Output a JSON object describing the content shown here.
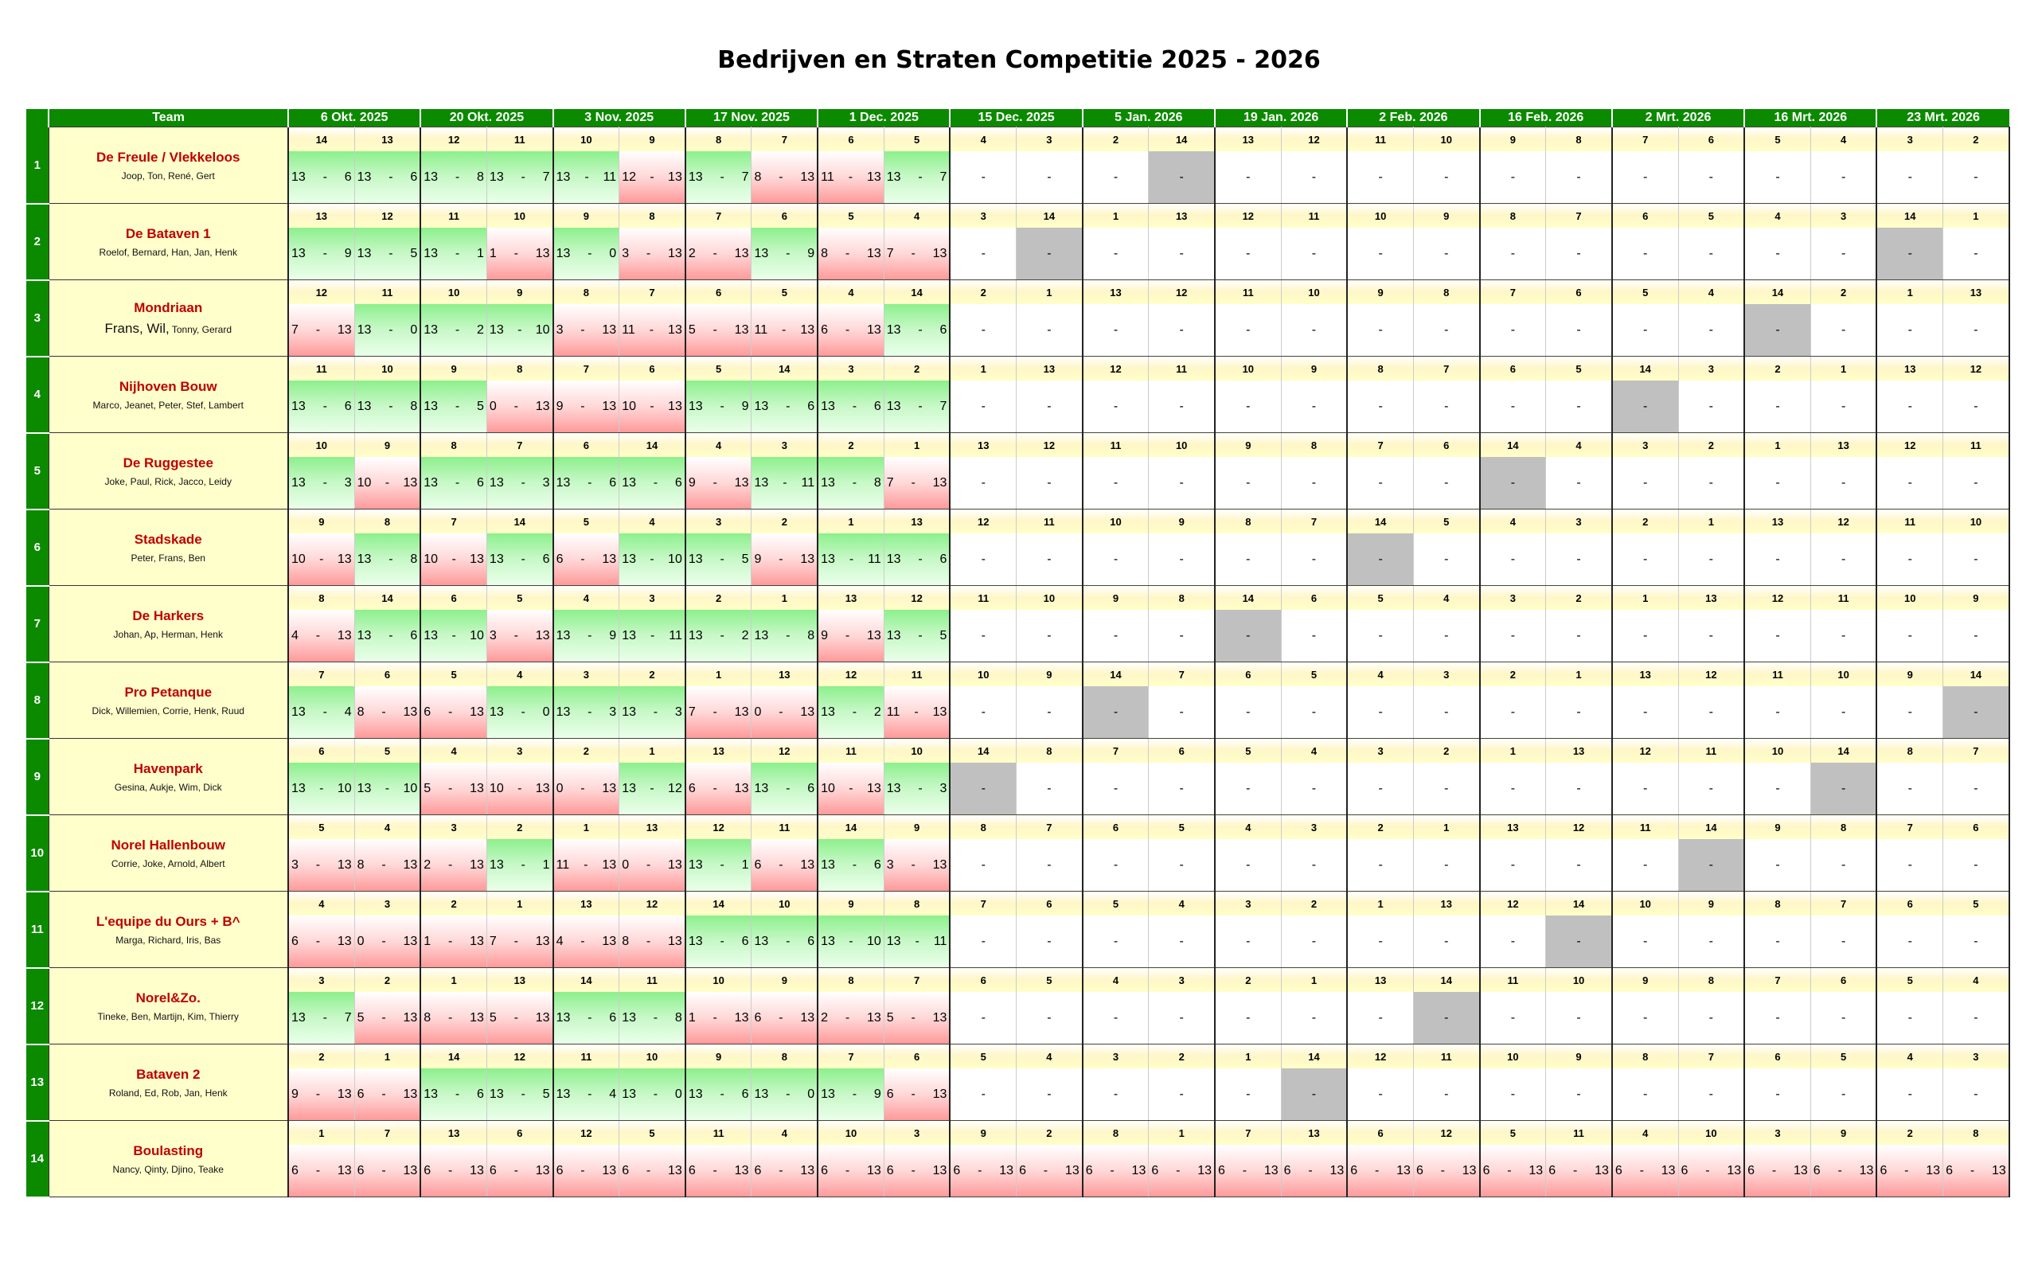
{
  "title": "Bedrijven en Straten Competitie 2025 - 2026",
  "header": {
    "team_label": "Team",
    "dates": [
      "6 Okt. 2025",
      "20 Okt. 2025",
      "3 Nov. 2025",
      "17 Nov. 2025",
      "1 Dec. 2025",
      "15 Dec. 2025",
      "5 Jan. 2026",
      "19 Jan. 2026",
      "2 Feb. 2026",
      "16 Feb. 2026",
      "2 Mrt. 2026",
      "16 Mrt. 2026",
      "23 Mrt. 2026"
    ]
  },
  "colors": {
    "header_green": "#0b8a00",
    "team_name_red": "#c00000",
    "team_bg": "#ffffcc",
    "bye_grey": "#c0c0c0"
  },
  "teams": [
    {
      "num": "1",
      "name": "De Freule / Vlekkeloos",
      "players": "Joop, Ton, René, Gert",
      "opponents": [
        "14",
        "13",
        "12",
        "11",
        "10",
        "9",
        "8",
        "7",
        "6",
        "5",
        "4",
        "3",
        "2",
        "14",
        "13",
        "12",
        "11",
        "10",
        "9",
        "8",
        "7",
        "6",
        "5",
        "4",
        "3",
        "2"
      ],
      "scores": [
        [
          "13",
          "6"
        ],
        [
          "13",
          "6"
        ],
        [
          "13",
          "8"
        ],
        [
          "13",
          "7"
        ],
        [
          "13",
          "11"
        ],
        [
          "12",
          "13"
        ],
        [
          "13",
          "7"
        ],
        [
          "8",
          "13"
        ],
        [
          "11",
          "13"
        ],
        [
          "13",
          "7"
        ],
        null,
        null,
        null,
        "bye",
        null,
        null,
        null,
        null,
        null,
        null,
        null,
        null,
        null,
        null,
        null,
        null
      ]
    },
    {
      "num": "2",
      "name": "De Bataven 1",
      "players": "Roelof, Bernard, Han, Jan, Henk",
      "opponents": [
        "13",
        "12",
        "11",
        "10",
        "9",
        "8",
        "7",
        "6",
        "5",
        "4",
        "3",
        "14",
        "1",
        "13",
        "12",
        "11",
        "10",
        "9",
        "8",
        "7",
        "6",
        "5",
        "4",
        "3",
        "14",
        "1"
      ],
      "scores": [
        [
          "13",
          "9"
        ],
        [
          "13",
          "5"
        ],
        [
          "13",
          "1"
        ],
        [
          "1",
          "13"
        ],
        [
          "13",
          "0"
        ],
        [
          "3",
          "13"
        ],
        [
          "2",
          "13"
        ],
        [
          "13",
          "9"
        ],
        [
          "8",
          "13"
        ],
        [
          "7",
          "13"
        ],
        null,
        "bye",
        null,
        null,
        null,
        null,
        null,
        null,
        null,
        null,
        null,
        null,
        null,
        null,
        "bye",
        null
      ]
    },
    {
      "num": "3",
      "name": "Mondriaan",
      "players_big": "Frans, Wil,",
      "players": "Tonny, Gerard",
      "opponents": [
        "12",
        "11",
        "10",
        "9",
        "8",
        "7",
        "6",
        "5",
        "4",
        "14",
        "2",
        "1",
        "13",
        "12",
        "11",
        "10",
        "9",
        "8",
        "7",
        "6",
        "5",
        "4",
        "14",
        "2",
        "1",
        "13"
      ],
      "scores": [
        [
          "7",
          "13"
        ],
        [
          "13",
          "0"
        ],
        [
          "13",
          "2"
        ],
        [
          "13",
          "10"
        ],
        [
          "3",
          "13"
        ],
        [
          "11",
          "13"
        ],
        [
          "5",
          "13"
        ],
        [
          "11",
          "13"
        ],
        [
          "6",
          "13"
        ],
        [
          "13",
          "6"
        ],
        null,
        null,
        null,
        null,
        null,
        null,
        null,
        null,
        null,
        null,
        null,
        null,
        "bye",
        null,
        null,
        null
      ]
    },
    {
      "num": "4",
      "name": "Nijhoven Bouw",
      "players": "Marco, Jeanet, Peter, Stef, Lambert",
      "opponents": [
        "11",
        "10",
        "9",
        "8",
        "7",
        "6",
        "5",
        "14",
        "3",
        "2",
        "1",
        "13",
        "12",
        "11",
        "10",
        "9",
        "8",
        "7",
        "6",
        "5",
        "14",
        "3",
        "2",
        "1",
        "13",
        "12"
      ],
      "scores": [
        [
          "13",
          "6"
        ],
        [
          "13",
          "8"
        ],
        [
          "13",
          "5"
        ],
        [
          "0",
          "13"
        ],
        [
          "9",
          "13"
        ],
        [
          "10",
          "13"
        ],
        [
          "13",
          "9"
        ],
        [
          "13",
          "6"
        ],
        [
          "13",
          "6"
        ],
        [
          "13",
          "7"
        ],
        null,
        null,
        null,
        null,
        null,
        null,
        null,
        null,
        null,
        null,
        "bye",
        null,
        null,
        null,
        null,
        null
      ]
    },
    {
      "num": "5",
      "name": "De Ruggestee",
      "players": "Joke, Paul, Rick, Jacco, Leidy",
      "opponents": [
        "10",
        "9",
        "8",
        "7",
        "6",
        "14",
        "4",
        "3",
        "2",
        "1",
        "13",
        "12",
        "11",
        "10",
        "9",
        "8",
        "7",
        "6",
        "14",
        "4",
        "3",
        "2",
        "1",
        "13",
        "12",
        "11"
      ],
      "scores": [
        [
          "13",
          "3"
        ],
        [
          "10",
          "13"
        ],
        [
          "13",
          "6"
        ],
        [
          "13",
          "3"
        ],
        [
          "13",
          "6"
        ],
        [
          "13",
          "6"
        ],
        [
          "9",
          "13"
        ],
        [
          "13",
          "11"
        ],
        [
          "13",
          "8"
        ],
        [
          "7",
          "13"
        ],
        null,
        null,
        null,
        null,
        null,
        null,
        null,
        null,
        "bye",
        null,
        null,
        null,
        null,
        null,
        null,
        null
      ]
    },
    {
      "num": "6",
      "name": "Stadskade",
      "players": "Peter, Frans, Ben",
      "opponents": [
        "9",
        "8",
        "7",
        "14",
        "5",
        "4",
        "3",
        "2",
        "1",
        "13",
        "12",
        "11",
        "10",
        "9",
        "8",
        "7",
        "14",
        "5",
        "4",
        "3",
        "2",
        "1",
        "13",
        "12",
        "11",
        "10"
      ],
      "scores": [
        [
          "10",
          "13"
        ],
        [
          "13",
          "8"
        ],
        [
          "10",
          "13"
        ],
        [
          "13",
          "6"
        ],
        [
          "6",
          "13"
        ],
        [
          "13",
          "10"
        ],
        [
          "13",
          "5"
        ],
        [
          "9",
          "13"
        ],
        [
          "13",
          "11"
        ],
        [
          "13",
          "6"
        ],
        null,
        null,
        null,
        null,
        null,
        null,
        "bye",
        null,
        null,
        null,
        null,
        null,
        null,
        null,
        null,
        null
      ]
    },
    {
      "num": "7",
      "name": "De Harkers",
      "players": "Johan, Ap, Herman, Henk",
      "opponents": [
        "8",
        "14",
        "6",
        "5",
        "4",
        "3",
        "2",
        "1",
        "13",
        "12",
        "11",
        "10",
        "9",
        "8",
        "14",
        "6",
        "5",
        "4",
        "3",
        "2",
        "1",
        "13",
        "12",
        "11",
        "10",
        "9"
      ],
      "scores": [
        [
          "4",
          "13"
        ],
        [
          "13",
          "6"
        ],
        [
          "13",
          "10"
        ],
        [
          "3",
          "13"
        ],
        [
          "13",
          "9"
        ],
        [
          "13",
          "11"
        ],
        [
          "13",
          "2"
        ],
        [
          "13",
          "8"
        ],
        [
          "9",
          "13"
        ],
        [
          "13",
          "5"
        ],
        null,
        null,
        null,
        null,
        "bye",
        null,
        null,
        null,
        null,
        null,
        null,
        null,
        null,
        null,
        null,
        null
      ]
    },
    {
      "num": "8",
      "name": "Pro Petanque",
      "players": "Dick, Willemien, Corrie, Henk, Ruud",
      "opponents": [
        "7",
        "6",
        "5",
        "4",
        "3",
        "2",
        "1",
        "13",
        "12",
        "11",
        "10",
        "9",
        "14",
        "7",
        "6",
        "5",
        "4",
        "3",
        "2",
        "1",
        "13",
        "12",
        "11",
        "10",
        "9",
        "14"
      ],
      "scores": [
        [
          "13",
          "4"
        ],
        [
          "8",
          "13"
        ],
        [
          "6",
          "13"
        ],
        [
          "13",
          "0"
        ],
        [
          "13",
          "3"
        ],
        [
          "13",
          "3"
        ],
        [
          "7",
          "13"
        ],
        [
          "0",
          "13"
        ],
        [
          "13",
          "2"
        ],
        [
          "11",
          "13"
        ],
        null,
        null,
        "bye",
        null,
        null,
        null,
        null,
        null,
        null,
        null,
        null,
        null,
        null,
        null,
        null,
        "bye"
      ]
    },
    {
      "num": "9",
      "name": "Havenpark",
      "players": "Gesina, Aukje, Wim, Dick",
      "opponents": [
        "6",
        "5",
        "4",
        "3",
        "2",
        "1",
        "13",
        "12",
        "11",
        "10",
        "14",
        "8",
        "7",
        "6",
        "5",
        "4",
        "3",
        "2",
        "1",
        "13",
        "12",
        "11",
        "10",
        "14",
        "8",
        "7"
      ],
      "scores": [
        [
          "13",
          "10"
        ],
        [
          "13",
          "10"
        ],
        [
          "5",
          "13"
        ],
        [
          "10",
          "13"
        ],
        [
          "0",
          "13"
        ],
        [
          "13",
          "12"
        ],
        [
          "6",
          "13"
        ],
        [
          "13",
          "6"
        ],
        [
          "10",
          "13"
        ],
        [
          "13",
          "3"
        ],
        "bye",
        null,
        null,
        null,
        null,
        null,
        null,
        null,
        null,
        null,
        null,
        null,
        null,
        "bye",
        null,
        null
      ]
    },
    {
      "num": "10",
      "name": "Norel Hallenbouw",
      "players": "Corrie, Joke, Arnold, Albert",
      "opponents": [
        "5",
        "4",
        "3",
        "2",
        "1",
        "13",
        "12",
        "11",
        "14",
        "9",
        "8",
        "7",
        "6",
        "5",
        "4",
        "3",
        "2",
        "1",
        "13",
        "12",
        "11",
        "14",
        "9",
        "8",
        "7",
        "6"
      ],
      "scores": [
        [
          "3",
          "13"
        ],
        [
          "8",
          "13"
        ],
        [
          "2",
          "13"
        ],
        [
          "13",
          "1"
        ],
        [
          "11",
          "13"
        ],
        [
          "0",
          "13"
        ],
        [
          "13",
          "1"
        ],
        [
          "6",
          "13"
        ],
        [
          "13",
          "6"
        ],
        [
          "3",
          "13"
        ],
        null,
        null,
        null,
        null,
        null,
        null,
        null,
        null,
        null,
        null,
        null,
        "bye",
        null,
        null,
        null,
        null
      ]
    },
    {
      "num": "11",
      "name": "L'equipe du Ours  + B^",
      "players": "Marga, Richard, Iris, Bas",
      "opponents": [
        "4",
        "3",
        "2",
        "1",
        "13",
        "12",
        "14",
        "10",
        "9",
        "8",
        "7",
        "6",
        "5",
        "4",
        "3",
        "2",
        "1",
        "13",
        "12",
        "14",
        "10",
        "9",
        "8",
        "7",
        "6",
        "5"
      ],
      "scores": [
        [
          "6",
          "13"
        ],
        [
          "0",
          "13"
        ],
        [
          "1",
          "13"
        ],
        [
          "7",
          "13"
        ],
        [
          "4",
          "13"
        ],
        [
          "8",
          "13"
        ],
        [
          "13",
          "6"
        ],
        [
          "13",
          "6"
        ],
        [
          "13",
          "10"
        ],
        [
          "13",
          "11"
        ],
        null,
        null,
        null,
        null,
        null,
        null,
        null,
        null,
        null,
        "bye",
        null,
        null,
        null,
        null,
        null,
        null
      ]
    },
    {
      "num": "12",
      "name": "Norel&Zo.",
      "players": "Tineke, Ben, Martijn, Kim, Thierry",
      "opponents": [
        "3",
        "2",
        "1",
        "13",
        "14",
        "11",
        "10",
        "9",
        "8",
        "7",
        "6",
        "5",
        "4",
        "3",
        "2",
        "1",
        "13",
        "14",
        "11",
        "10",
        "9",
        "8",
        "7",
        "6",
        "5",
        "4"
      ],
      "scores": [
        [
          "13",
          "7"
        ],
        [
          "5",
          "13"
        ],
        [
          "8",
          "13"
        ],
        [
          "5",
          "13"
        ],
        [
          "13",
          "6"
        ],
        [
          "13",
          "8"
        ],
        [
          "1",
          "13"
        ],
        [
          "6",
          "13"
        ],
        [
          "2",
          "13"
        ],
        [
          "5",
          "13"
        ],
        null,
        null,
        null,
        null,
        null,
        null,
        null,
        "bye",
        null,
        null,
        null,
        null,
        null,
        null,
        null,
        null
      ]
    },
    {
      "num": "13",
      "name": "Bataven 2",
      "players": "Roland, Ed, Rob, Jan, Henk",
      "opponents": [
        "2",
        "1",
        "14",
        "12",
        "11",
        "10",
        "9",
        "8",
        "7",
        "6",
        "5",
        "4",
        "3",
        "2",
        "1",
        "14",
        "12",
        "11",
        "10",
        "9",
        "8",
        "7",
        "6",
        "5",
        "4",
        "3"
      ],
      "scores": [
        [
          "9",
          "13"
        ],
        [
          "6",
          "13"
        ],
        [
          "13",
          "6"
        ],
        [
          "13",
          "5"
        ],
        [
          "13",
          "4"
        ],
        [
          "13",
          "0"
        ],
        [
          "13",
          "6"
        ],
        [
          "13",
          "0"
        ],
        [
          "13",
          "9"
        ],
        [
          "6",
          "13"
        ],
        null,
        null,
        null,
        null,
        null,
        "bye",
        null,
        null,
        null,
        null,
        null,
        null,
        null,
        null,
        null,
        null
      ]
    },
    {
      "num": "14",
      "name": "Boulasting",
      "players": "Nancy, Qinty, Djino, Teake",
      "opponents": [
        "1",
        "7",
        "13",
        "6",
        "12",
        "5",
        "11",
        "4",
        "10",
        "3",
        "9",
        "2",
        "8",
        "1",
        "7",
        "13",
        "6",
        "12",
        "5",
        "11",
        "4",
        "10",
        "3",
        "9",
        "2",
        "8"
      ],
      "scores": [
        [
          "6",
          "13"
        ],
        [
          "6",
          "13"
        ],
        [
          "6",
          "13"
        ],
        [
          "6",
          "13"
        ],
        [
          "6",
          "13"
        ],
        [
          "6",
          "13"
        ],
        [
          "6",
          "13"
        ],
        [
          "6",
          "13"
        ],
        [
          "6",
          "13"
        ],
        [
          "6",
          "13"
        ],
        [
          "6",
          "13"
        ],
        [
          "6",
          "13"
        ],
        [
          "6",
          "13"
        ],
        [
          "6",
          "13"
        ],
        [
          "6",
          "13"
        ],
        [
          "6",
          "13"
        ],
        [
          "6",
          "13"
        ],
        [
          "6",
          "13"
        ],
        [
          "6",
          "13"
        ],
        [
          "6",
          "13"
        ],
        [
          "6",
          "13"
        ],
        [
          "6",
          "13"
        ],
        [
          "6",
          "13"
        ],
        [
          "6",
          "13"
        ],
        [
          "6",
          "13"
        ],
        [
          "6",
          "13"
        ]
      ]
    }
  ],
  "empty_mark": "-"
}
